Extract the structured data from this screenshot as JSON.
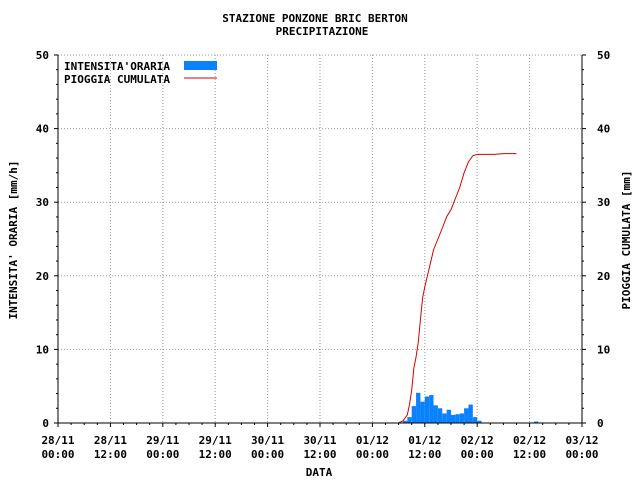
{
  "chart_data": {
    "type": "bar",
    "title": "STAZIONE PONZONE BRIC BERTON",
    "subtitle": "PRECIPITAZIONE",
    "xlabel": "DATA",
    "ylabel_left": "INTENSITA' ORARIA [mm/h]",
    "ylabel_right": "PIOGGIA CUMULATA [mm]",
    "xlim_hours": [
      0,
      120
    ],
    "ylim": [
      0,
      50
    ],
    "yticks": [
      0,
      10,
      20,
      30,
      40,
      50
    ],
    "xticks": [
      {
        "h": 0,
        "l1": "28/11",
        "l2": "00:00"
      },
      {
        "h": 12,
        "l1": "28/11",
        "l2": "12:00"
      },
      {
        "h": 24,
        "l1": "29/11",
        "l2": "00:00"
      },
      {
        "h": 36,
        "l1": "29/11",
        "l2": "12:00"
      },
      {
        "h": 48,
        "l1": "30/11",
        "l2": "00:00"
      },
      {
        "h": 60,
        "l1": "30/11",
        "l2": "12:00"
      },
      {
        "h": 72,
        "l1": "01/12",
        "l2": "00:00"
      },
      {
        "h": 84,
        "l1": "01/12",
        "l2": "12:00"
      },
      {
        "h": 96,
        "l1": "02/12",
        "l2": "00:00"
      },
      {
        "h": 108,
        "l1": "02/12",
        "l2": "12:00"
      },
      {
        "h": 120,
        "l1": "03/12",
        "l2": "00:00"
      }
    ],
    "grid": true,
    "legend_position": "top-left",
    "series": [
      {
        "name": "INTENSITA'ORARIA",
        "type": "bar",
        "color": "#0a82ff",
        "x_hours": [
          79,
          80,
          81,
          82,
          83,
          84,
          85,
          86,
          87,
          88,
          89,
          90,
          91,
          92,
          93,
          94,
          95,
          96,
          109
        ],
        "values": [
          0.3,
          0.8,
          2.3,
          4.1,
          2.9,
          3.6,
          3.8,
          2.4,
          2.0,
          1.3,
          1.8,
          1.1,
          1.2,
          1.3,
          2.0,
          2.5,
          0.8,
          0.3,
          0.2
        ]
      },
      {
        "name": "PIOGGIA CUMULATA",
        "type": "line",
        "color": "#d40000",
        "x_hours": [
          78,
          79,
          80,
          80.5,
          81,
          81.5,
          82,
          82.5,
          83,
          83.5,
          84,
          85,
          86,
          87,
          88,
          89,
          90,
          91,
          92,
          93,
          94,
          95,
          96,
          97,
          98,
          100,
          102,
          104,
          105
        ],
        "values": [
          0,
          0.3,
          1.1,
          2.5,
          4.5,
          7.5,
          9,
          11,
          14,
          17,
          18.5,
          21,
          23.5,
          25,
          26.5,
          28,
          29,
          30.5,
          32,
          34,
          35.5,
          36.3,
          36.5,
          36.5,
          36.5,
          36.5,
          36.6,
          36.6,
          36.6
        ]
      }
    ]
  }
}
